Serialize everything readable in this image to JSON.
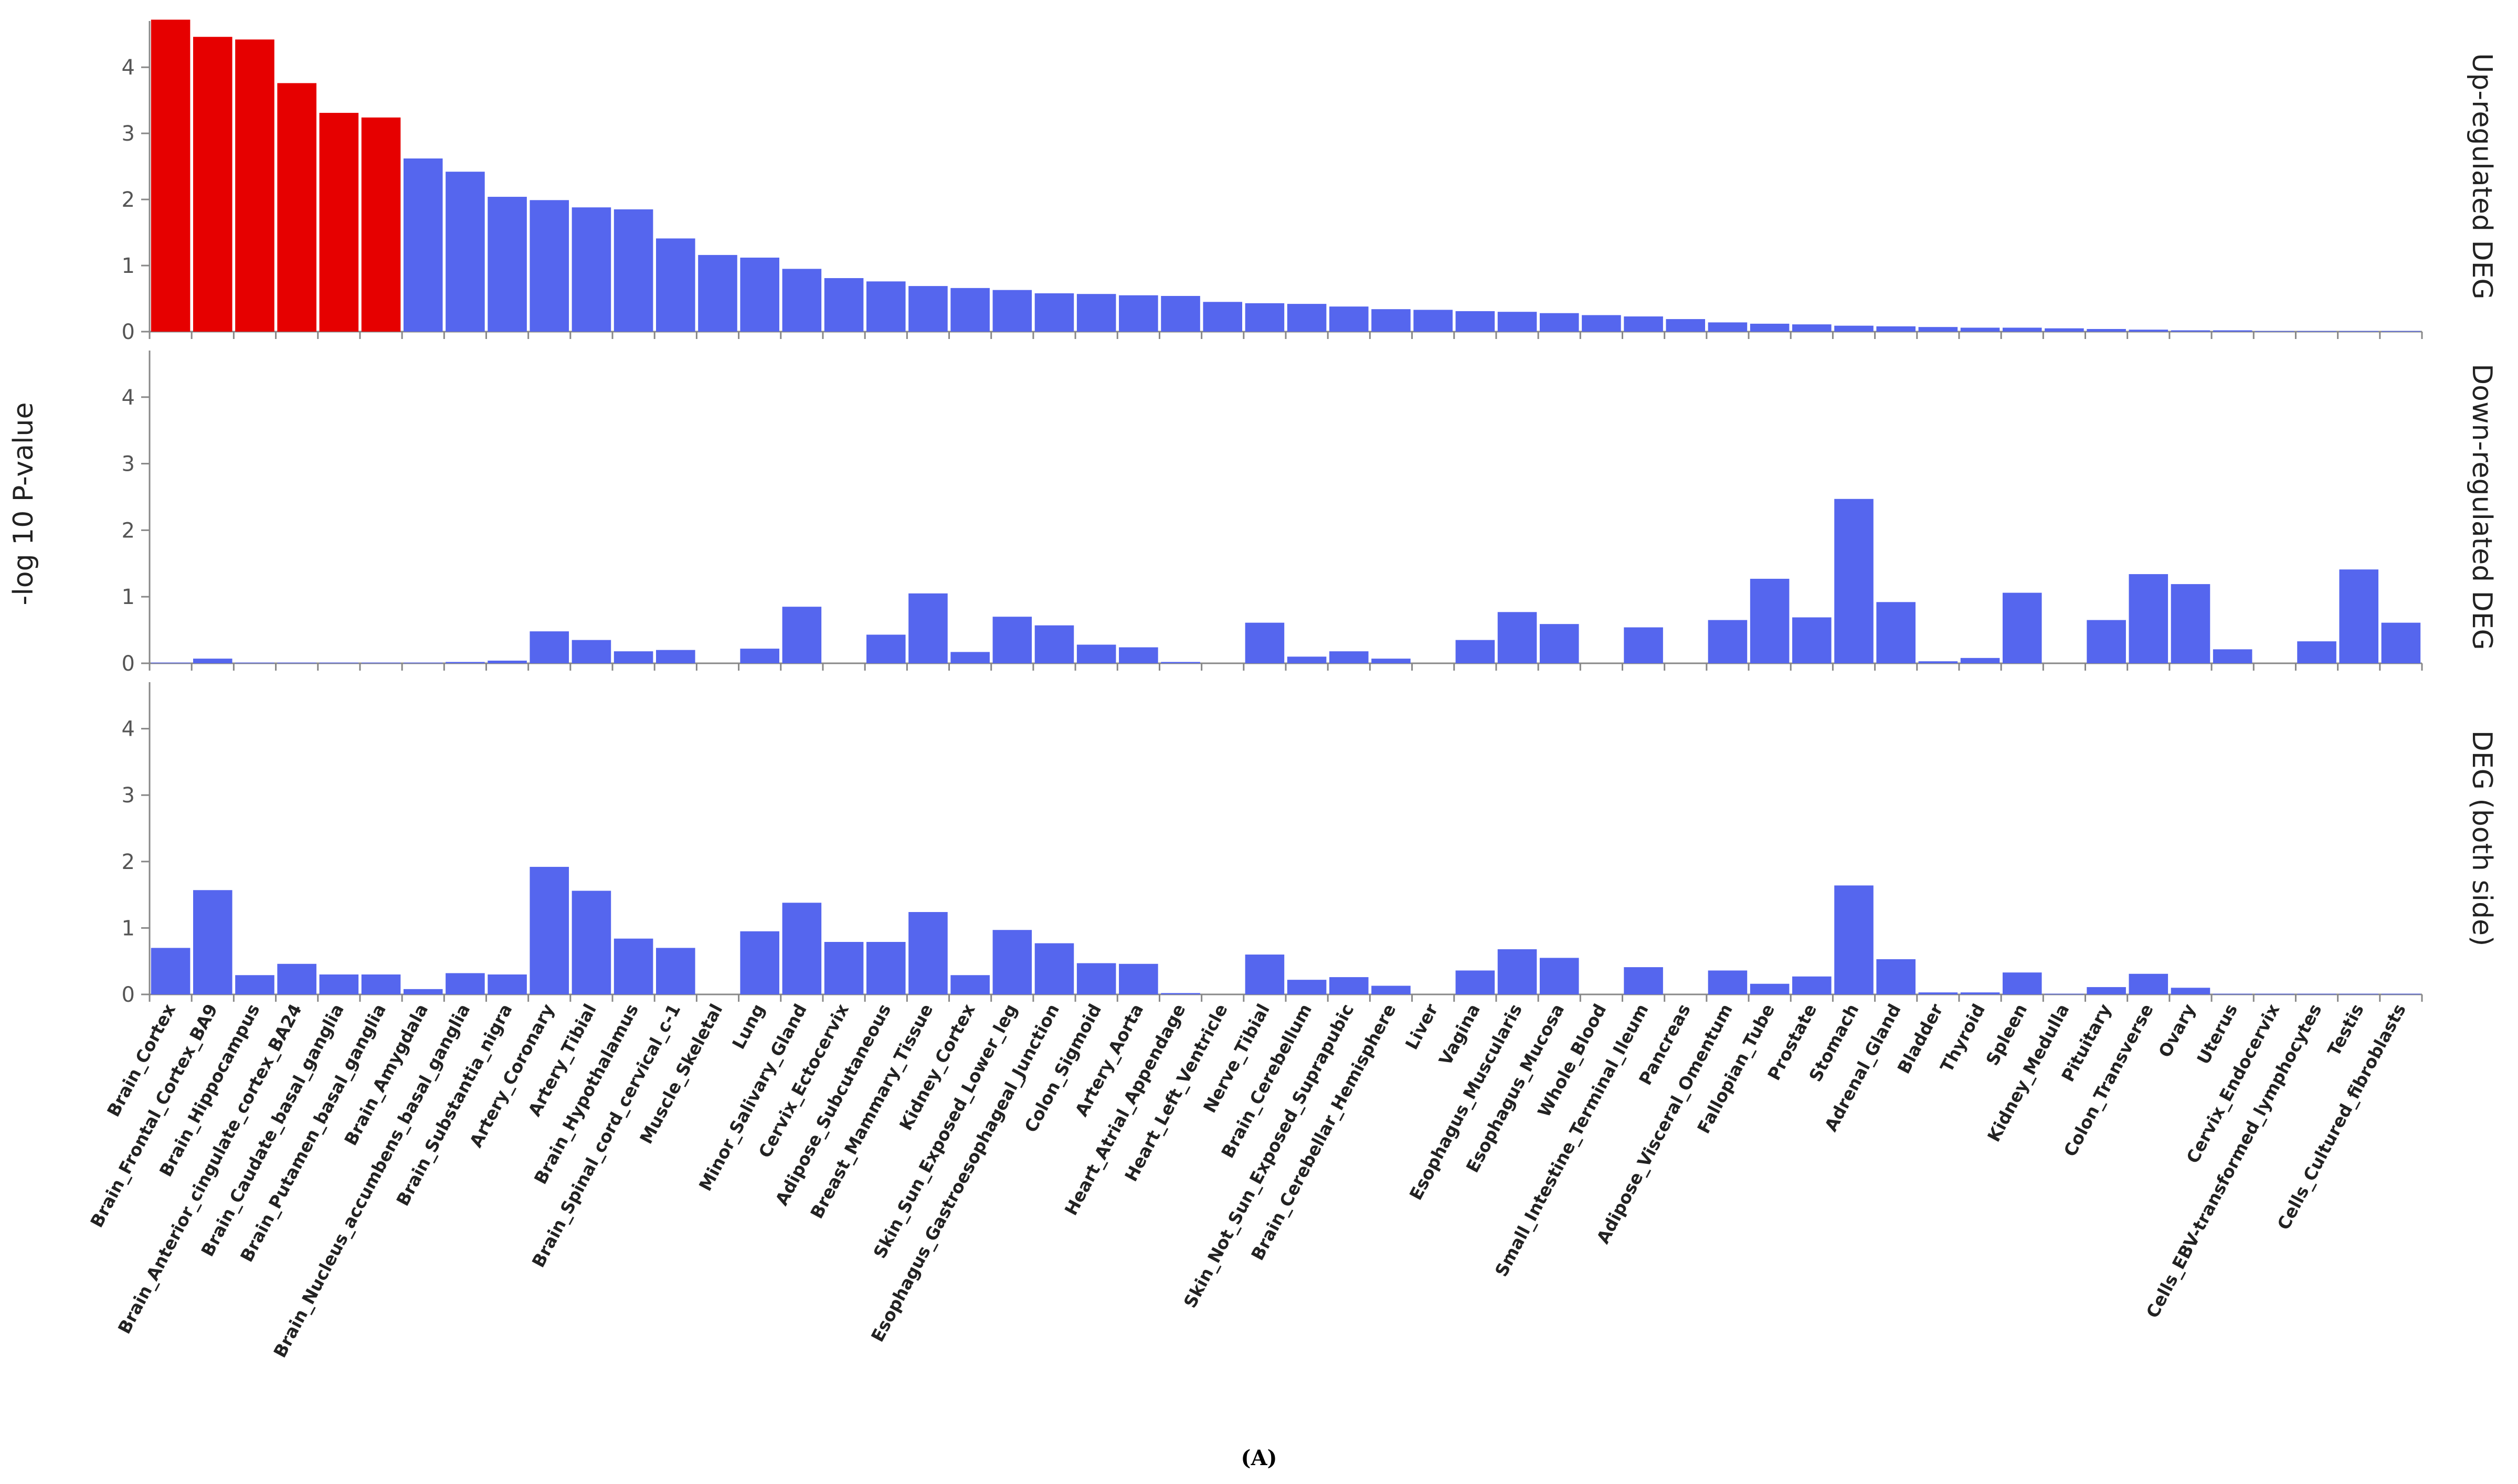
{
  "chart_data": {
    "type": "bar",
    "ylabel": "-log 10 P-value",
    "ylim": [
      0,
      4.7
    ],
    "yticks": [
      0,
      1,
      2,
      3,
      4
    ],
    "caption": "(A)",
    "colors": {
      "highlight": "#e60000",
      "normal": "#5566ee",
      "axis": "#888888"
    },
    "categories": [
      "Brain_Cortex",
      "Brain_Frontal_Cortex_BA9",
      "Brain_Hippocampus",
      "Brain_Anterior_cingulate_cortex_BA24",
      "Brain_Caudate_basal_ganglia",
      "Brain_Putamen_basal_ganglia",
      "Brain_Amygdala",
      "Brain_Nucleus_accumbens_basal_ganglia",
      "Brain_Substantia_nigra",
      "Artery_Coronary",
      "Artery_Tibial",
      "Brain_Hypothalamus",
      "Brain_Spinal_cord_cervical_c-1",
      "Muscle_Skeletal",
      "Lung",
      "Minor_Salivary_Gland",
      "Cervix_Ectocervix",
      "Adipose_Subcutaneous",
      "Breast_Mammary_Tissue",
      "Kidney_Cortex",
      "Skin_Sun_Exposed_Lower_leg",
      "Esophagus_Gastroesophageal_Junction",
      "Colon_Sigmoid",
      "Artery_Aorta",
      "Heart_Atrial_Appendage",
      "Heart_Left_Ventricle",
      "Nerve_Tibial",
      "Brain_Cerebellum",
      "Skin_Not_Sun_Exposed_Suprapubic",
      "Brain_Cerebellar_Hemisphere",
      "Liver",
      "Vagina",
      "Esophagus_Muscularis",
      "Esophagus_Mucosa",
      "Whole_Blood",
      "Small_Intestine_Terminal_Ileum",
      "Pancreas",
      "Adipose_Visceral_Omentum",
      "Fallopian_Tube",
      "Prostate",
      "Stomach",
      "Adrenal_Gland",
      "Bladder",
      "Thyroid",
      "Spleen",
      "Kidney_Medulla",
      "Pituitary",
      "Colon_Transverse",
      "Ovary",
      "Uterus",
      "Cervix_Endocervix",
      "Cells_EBV-transformed_lymphocytes",
      "Testis",
      "Cells_Cultured_fibroblasts"
    ],
    "highlighted_count": 6,
    "series": [
      {
        "name": "Up-regulated DEG",
        "values": [
          4.72,
          4.46,
          4.42,
          3.76,
          3.31,
          3.24,
          2.62,
          2.42,
          2.04,
          1.99,
          1.88,
          1.85,
          1.41,
          1.16,
          1.12,
          0.95,
          0.81,
          0.76,
          0.69,
          0.66,
          0.63,
          0.58,
          0.57,
          0.55,
          0.54,
          0.45,
          0.43,
          0.42,
          0.38,
          0.34,
          0.33,
          0.31,
          0.3,
          0.28,
          0.25,
          0.23,
          0.19,
          0.14,
          0.12,
          0.11,
          0.09,
          0.08,
          0.07,
          0.06,
          0.06,
          0.05,
          0.04,
          0.03,
          0.02,
          0.02,
          0.01,
          0.01,
          0.01,
          0.01
        ]
      },
      {
        "name": "Down-regulated DEG",
        "values": [
          0.01,
          0.07,
          0.01,
          0.01,
          0.01,
          0.01,
          0.01,
          0.02,
          0.04,
          0.48,
          0.35,
          0.18,
          0.2,
          0.0,
          0.22,
          0.85,
          0.0,
          0.43,
          1.05,
          0.17,
          0.7,
          0.57,
          0.28,
          0.24,
          0.02,
          0.0,
          0.61,
          0.1,
          0.18,
          0.07,
          0.0,
          0.35,
          0.77,
          0.59,
          0.0,
          0.54,
          0.0,
          0.65,
          1.27,
          0.69,
          2.47,
          0.92,
          0.03,
          0.08,
          1.06,
          0.0,
          0.65,
          1.34,
          1.19,
          0.21,
          0.0,
          0.33,
          1.41,
          0.61
        ]
      },
      {
        "name": "DEG (both side)",
        "values": [
          0.7,
          1.57,
          0.29,
          0.46,
          0.3,
          0.3,
          0.08,
          0.32,
          0.3,
          1.92,
          1.56,
          0.84,
          0.7,
          0.0,
          0.95,
          1.38,
          0.79,
          0.79,
          1.24,
          0.29,
          0.97,
          0.77,
          0.47,
          0.46,
          0.02,
          0.0,
          0.6,
          0.22,
          0.26,
          0.13,
          0.0,
          0.36,
          0.68,
          0.55,
          0.0,
          0.41,
          0.0,
          0.36,
          0.16,
          0.27,
          1.64,
          0.53,
          0.03,
          0.03,
          0.33,
          0.01,
          0.11,
          0.31,
          0.1,
          0.01,
          0.01,
          0.01,
          0.01,
          0.01
        ]
      }
    ]
  }
}
